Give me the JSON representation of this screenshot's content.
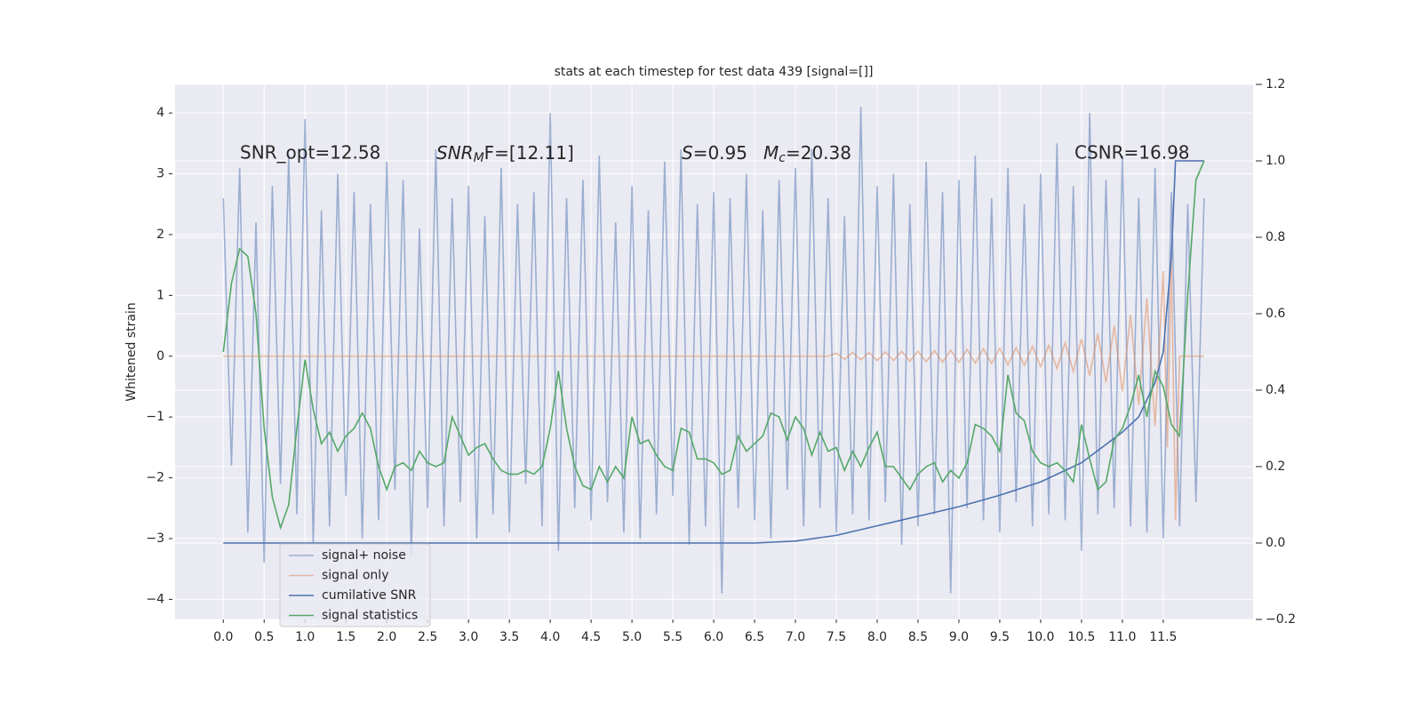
{
  "chart_data": {
    "type": "line",
    "title": "stats at each timestep for test data 439 [signal=[]]",
    "y_label": "Whitened strain",
    "background": "#eaeaf2",
    "grid": true,
    "legend": "lower left",
    "xlim": [
      -0.59,
      12.6
    ],
    "ylim": [
      -4.33,
      4.47
    ],
    "y2lim": [
      -0.2,
      1.2
    ],
    "xticks": [
      {
        "value": 0,
        "label": "0.0"
      },
      0.5,
      {
        "value": 1,
        "label": "1.0"
      },
      1.5,
      {
        "value": 2,
        "label": "2.0"
      },
      2.5,
      {
        "value": 3,
        "label": "3.0"
      },
      3.5,
      {
        "value": 4,
        "label": "4.0"
      },
      4.5,
      {
        "value": 5,
        "label": "5.0"
      },
      5.5,
      {
        "value": 6,
        "label": "6.0"
      },
      6.5,
      {
        "value": 7,
        "label": "7.0"
      },
      7.5,
      {
        "value": 8,
        "label": "8.0"
      },
      8.5,
      {
        "value": 9,
        "label": "9.0"
      },
      9.5,
      {
        "value": 10,
        "label": "10.0"
      },
      10.5,
      {
        "value": 11,
        "label": "11.0"
      },
      11.5
    ],
    "yticks": [
      {
        "value": -4,
        "label": "−4"
      },
      {
        "value": -3,
        "label": "−3"
      },
      {
        "value": -2,
        "label": "−2"
      },
      {
        "value": -1,
        "label": "−1"
      },
      0,
      1,
      2,
      3,
      4
    ],
    "y2ticks": [
      {
        "value": -0.2,
        "label": "−0.2"
      },
      {
        "value": 0,
        "label": "0.0"
      },
      0.2,
      0.4,
      0.6,
      0.8,
      {
        "value": 1,
        "label": "1.0"
      },
      1.2
    ],
    "annotations": [
      {
        "text": "SNR_opt=12.58"
      },
      {
        "parts": [
          "SNR",
          "M",
          "F=[12.11]"
        ]
      },
      {
        "parts": [
          "S",
          "=0.95"
        ]
      },
      {
        "parts": [
          "M",
          "c",
          "=20.38"
        ]
      },
      {
        "text": "CSNR=16.98"
      }
    ],
    "x": [
      0,
      0.1,
      0.2,
      0.3,
      0.4,
      0.5,
      0.6,
      0.7,
      0.8,
      0.9,
      1.0,
      1.1,
      1.2,
      1.3,
      1.4,
      1.5,
      1.6,
      1.7,
      1.8,
      1.9,
      2.0,
      2.1,
      2.2,
      2.3,
      2.4,
      2.5,
      2.6,
      2.7,
      2.8,
      2.9,
      3.0,
      3.1,
      3.2,
      3.3,
      3.4,
      3.5,
      3.6,
      3.7,
      3.8,
      3.9,
      4.0,
      4.1,
      4.2,
      4.3,
      4.4,
      4.5,
      4.6,
      4.7,
      4.8,
      4.9,
      5.0,
      5.1,
      5.2,
      5.3,
      5.4,
      5.5,
      5.6,
      5.7,
      5.8,
      5.9,
      6.0,
      6.1,
      6.2,
      6.3,
      6.4,
      6.5,
      6.6,
      6.7,
      6.8,
      6.9,
      7.0,
      7.1,
      7.2,
      7.3,
      7.4,
      7.5,
      7.6,
      7.7,
      7.8,
      7.9,
      8.0,
      8.1,
      8.2,
      8.3,
      8.4,
      8.5,
      8.6,
      8.7,
      8.8,
      8.9,
      9.0,
      9.1,
      9.2,
      9.3,
      9.4,
      9.5,
      9.6,
      9.7,
      9.8,
      9.9,
      10.0,
      10.1,
      10.2,
      10.3,
      10.4,
      10.5,
      10.6,
      10.7,
      10.8,
      10.9,
      11.0,
      11.1,
      11.2,
      11.3,
      11.4,
      11.5,
      11.6,
      11.7,
      11.8,
      11.9,
      12.0
    ],
    "series": [
      {
        "name": "signal+ noise",
        "color": "#4c72b0",
        "alpha": 0.5,
        "values": [
          2.6,
          -1.8,
          3.1,
          -2.9,
          2.2,
          -3.4,
          2.8,
          -2.1,
          3.3,
          -2.6,
          3.9,
          -3.1,
          2.4,
          -2.8,
          3.0,
          -2.3,
          2.7,
          -3.0,
          2.5,
          -2.7,
          3.2,
          -2.2,
          2.9,
          -3.3,
          2.1,
          -2.5,
          3.4,
          -2.8,
          2.6,
          -2.4,
          2.8,
          -3.0,
          2.3,
          -2.6,
          3.1,
          -2.9,
          2.5,
          -2.1,
          2.7,
          -2.8,
          4.0,
          -3.2,
          2.6,
          -2.5,
          2.9,
          -2.7,
          3.3,
          -2.4,
          2.2,
          -2.9,
          2.8,
          -3.0,
          2.4,
          -2.6,
          3.2,
          -2.3,
          3.4,
          -3.1,
          2.5,
          -2.8,
          2.7,
          -3.9,
          2.6,
          -2.5,
          3.0,
          -2.7,
          2.4,
          -3.0,
          2.9,
          -2.2,
          3.1,
          -2.8,
          3.4,
          -2.5,
          2.6,
          -2.9,
          2.3,
          -2.6,
          4.1,
          -2.7,
          2.8,
          -2.4,
          3.0,
          -3.1,
          2.5,
          -2.8,
          3.2,
          -2.6,
          2.7,
          -3.9,
          2.9,
          -2.5,
          3.3,
          -2.7,
          2.6,
          -2.9,
          3.1,
          -2.4,
          2.5,
          -2.8,
          3.0,
          -2.6,
          3.5,
          -2.7,
          2.8,
          -3.2,
          4.0,
          -2.6,
          2.9,
          -2.5,
          3.3,
          -2.8,
          2.6,
          -2.9,
          3.1,
          -3.0,
          2.7,
          -2.8,
          2.5,
          -2.4,
          2.6
        ]
      },
      {
        "name": "signal only",
        "color": "#dd8452",
        "alpha": 0.5,
        "x": [
          0,
          7.4,
          7.5,
          7.6,
          7.7,
          7.8,
          7.9,
          8.0,
          8.1,
          8.2,
          8.3,
          8.4,
          8.5,
          8.6,
          8.7,
          8.8,
          8.9,
          9.0,
          9.1,
          9.2,
          9.3,
          9.4,
          9.5,
          9.6,
          9.7,
          9.8,
          9.9,
          10.0,
          10.1,
          10.2,
          10.3,
          10.4,
          10.5,
          10.6,
          10.7,
          10.8,
          10.9,
          11.0,
          11.1,
          11.2,
          11.3,
          11.4,
          11.5,
          11.55,
          11.6,
          11.65,
          11.7,
          12.0
        ],
        "values": [
          0,
          0,
          0.05,
          -0.05,
          0.06,
          -0.06,
          0.06,
          -0.07,
          0.07,
          -0.07,
          0.08,
          -0.08,
          0.08,
          -0.09,
          0.09,
          -0.1,
          0.1,
          -0.1,
          0.11,
          -0.11,
          0.12,
          -0.12,
          0.13,
          -0.14,
          0.14,
          -0.15,
          0.16,
          -0.17,
          0.18,
          -0.2,
          0.22,
          -0.25,
          0.28,
          -0.32,
          0.37,
          -0.43,
          0.5,
          -0.58,
          0.68,
          -0.8,
          0.95,
          -1.15,
          1.4,
          -1.5,
          1.6,
          -2.7,
          0,
          0
        ]
      },
      {
        "name": "cumilative SNR",
        "color": "#4c72b0",
        "axis": "y2",
        "x": [
          0,
          6.5,
          7.0,
          7.5,
          8.0,
          8.5,
          9.0,
          9.5,
          10.0,
          10.5,
          11.0,
          11.2,
          11.4,
          11.5,
          11.6,
          11.65,
          12.0
        ],
        "values": [
          0,
          0,
          0.005,
          0.02,
          0.045,
          0.07,
          0.095,
          0.125,
          0.16,
          0.21,
          0.29,
          0.33,
          0.42,
          0.5,
          0.75,
          1.0,
          1.0
        ]
      },
      {
        "name": "signal statistics",
        "color": "#55a868",
        "axis": "y2",
        "values": [
          0.5,
          0.68,
          0.77,
          0.75,
          0.6,
          0.3,
          0.12,
          0.04,
          0.1,
          0.3,
          0.48,
          0.35,
          0.26,
          0.29,
          0.24,
          0.28,
          0.3,
          0.34,
          0.3,
          0.2,
          0.14,
          0.2,
          0.21,
          0.19,
          0.24,
          0.21,
          0.2,
          0.21,
          0.33,
          0.28,
          0.23,
          0.25,
          0.26,
          0.22,
          0.19,
          0.18,
          0.18,
          0.19,
          0.18,
          0.2,
          0.3,
          0.45,
          0.3,
          0.2,
          0.15,
          0.14,
          0.2,
          0.16,
          0.2,
          0.17,
          0.33,
          0.26,
          0.27,
          0.23,
          0.2,
          0.19,
          0.3,
          0.29,
          0.22,
          0.22,
          0.21,
          0.18,
          0.19,
          0.28,
          0.24,
          0.26,
          0.28,
          0.34,
          0.33,
          0.27,
          0.33,
          0.3,
          0.23,
          0.29,
          0.24,
          0.25,
          0.19,
          0.24,
          0.2,
          0.25,
          0.29,
          0.2,
          0.2,
          0.17,
          0.14,
          0.18,
          0.2,
          0.21,
          0.16,
          0.19,
          0.17,
          0.21,
          0.31,
          0.3,
          0.28,
          0.24,
          0.44,
          0.34,
          0.32,
          0.24,
          0.21,
          0.2,
          0.21,
          0.19,
          0.16,
          0.31,
          0.22,
          0.14,
          0.16,
          0.27,
          0.3,
          0.36,
          0.44,
          0.33,
          0.45,
          0.41,
          0.31,
          0.28,
          0.65,
          0.95,
          1.0
        ]
      }
    ]
  }
}
